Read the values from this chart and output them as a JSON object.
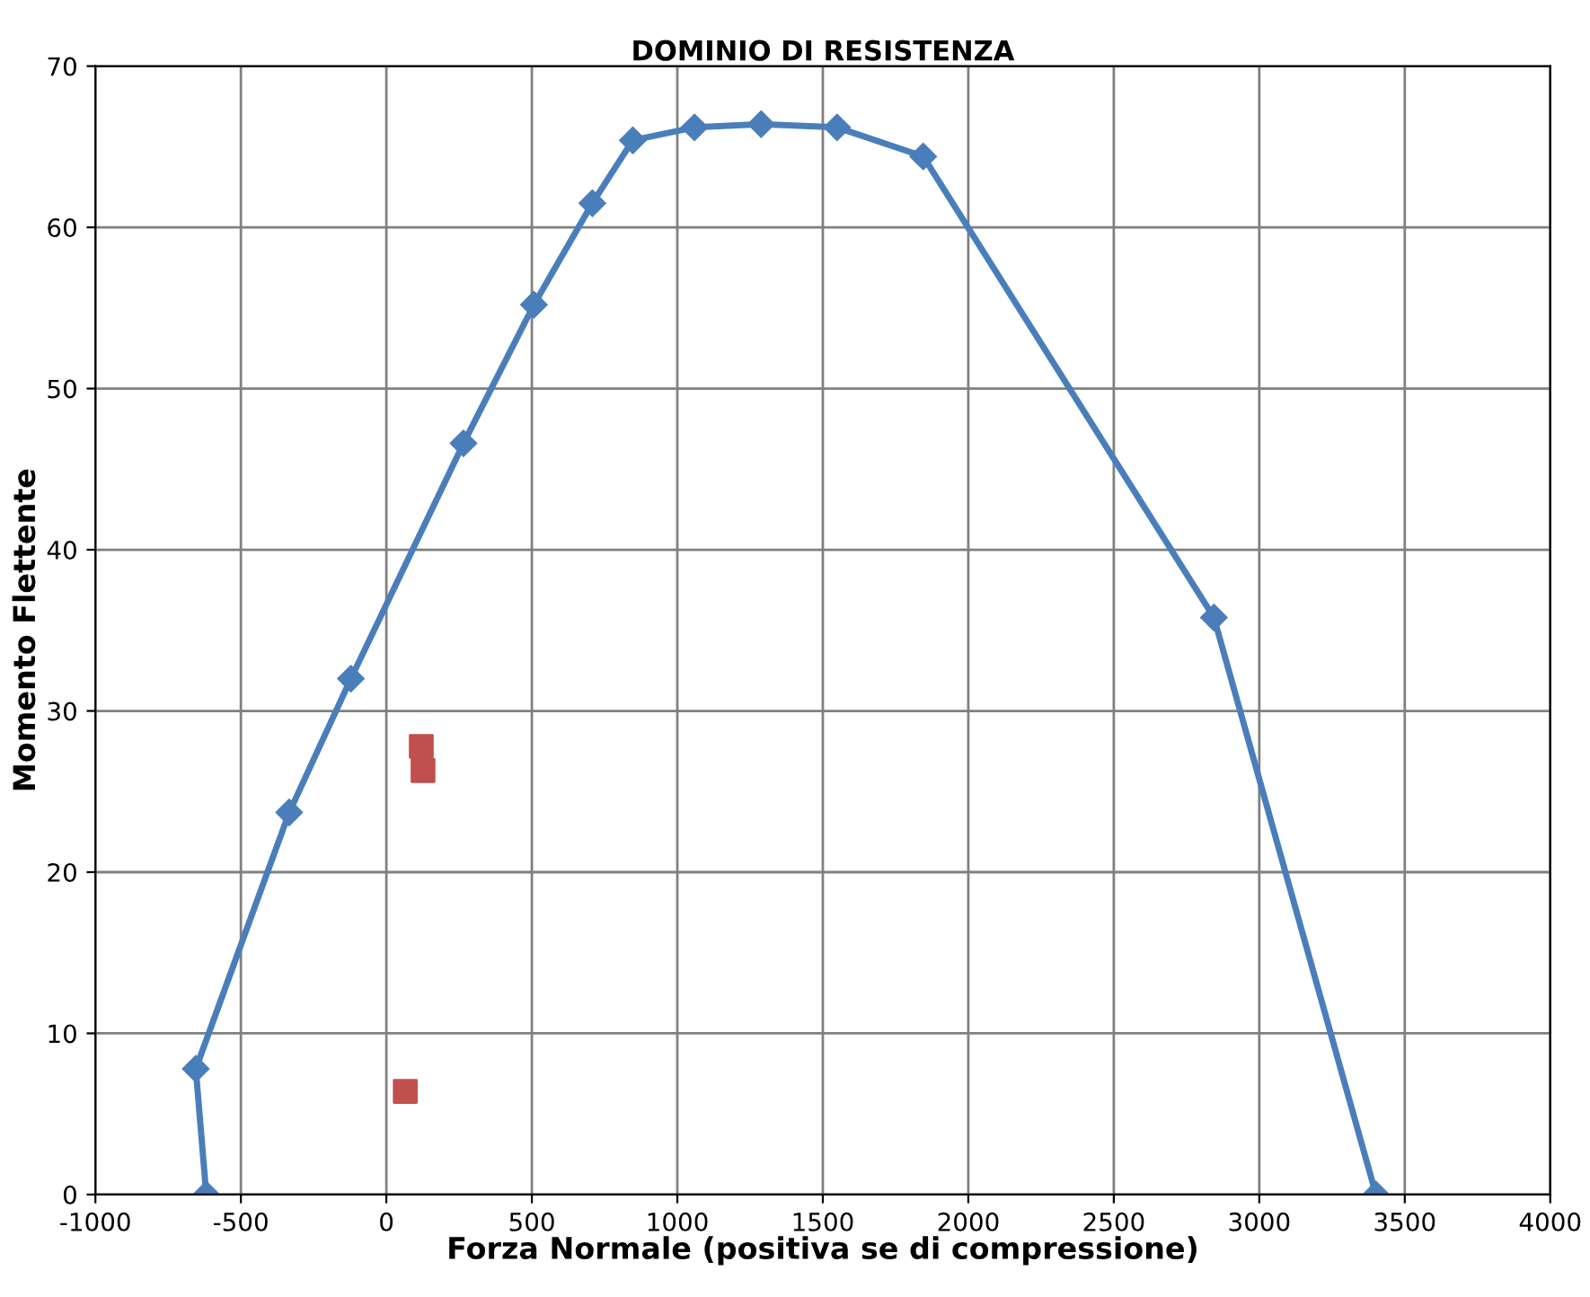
{
  "chart_data": {
    "type": "line",
    "title": "DOMINIO DI RESISTENZA",
    "xlabel": "Forza Normale (positiva se di compressione)",
    "ylabel": "Momento Flettente",
    "series": [
      {
        "color": "#4a7ebb",
        "marker": "diamond",
        "x": [
          -619,
          -655,
          -334,
          -122,
          265,
          507,
          708,
          847,
          1059,
          1288,
          1549,
          1845,
          2844,
          3401
        ],
        "values": [
          0,
          7.8,
          23.7,
          32.0,
          46.6,
          55.2,
          61.5,
          65.4,
          66.2,
          66.4,
          66.2,
          64.4,
          35.8,
          0
        ]
      },
      {
        "type": "scatter",
        "color": "#c0504d",
        "marker": "square",
        "x": [
          120,
          126,
          65
        ],
        "values": [
          27.8,
          26.3,
          6.4
        ]
      }
    ],
    "xlim": [
      -1000,
      4000
    ],
    "xticks": [
      -1000,
      -500,
      0,
      500,
      1000,
      1500,
      2000,
      2500,
      3000,
      3500,
      4000
    ],
    "ylim": [
      0,
      70
    ],
    "yticks": [
      0,
      10,
      20,
      30,
      40,
      50,
      60,
      70
    ],
    "grid": true,
    "legend": false
  }
}
